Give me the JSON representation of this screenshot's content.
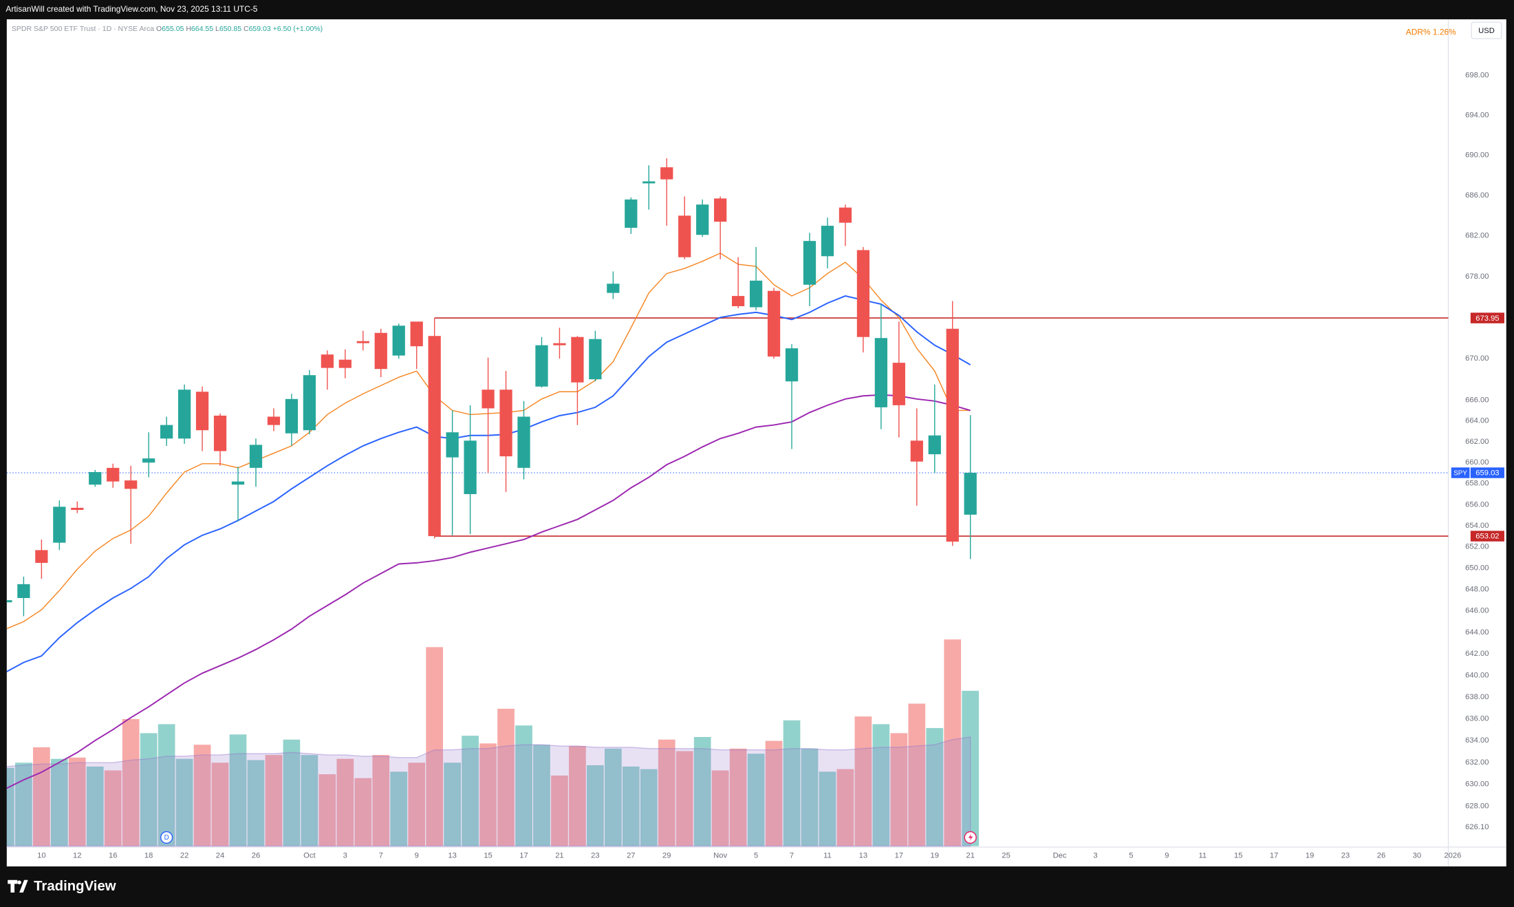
{
  "header": {
    "credit": "ArtisanWill created with TradingView.com, Nov 23, 2025 13:11 UTC-5"
  },
  "footer": {
    "brand": "TradingView"
  },
  "chart_data": {
    "type": "candlestick",
    "symbol_title": "SPDR S&P 500 ETF Trust · 1D · NYSE Arca",
    "legend_letters": [
      "O",
      "H",
      "L",
      "C"
    ],
    "change": "+6.50 (+1.00%)",
    "currency": "USD",
    "indicator": {
      "name": "ADR%",
      "value": 1.26,
      "value_label": "1.26%"
    },
    "symbol": "SPY",
    "dividend_marker": "D",
    "categories": [
      null,
      null,
      "10",
      null,
      "12",
      null,
      "16",
      null,
      "18",
      null,
      "22",
      null,
      "24",
      null,
      "26",
      null,
      null,
      "Oct",
      null,
      "3",
      null,
      "7",
      null,
      "9",
      null,
      "13",
      null,
      "15",
      null,
      "17",
      null,
      "21",
      null,
      "23",
      null,
      "27",
      null,
      "29",
      null,
      null,
      "Nov",
      null,
      "5",
      null,
      "7",
      null,
      "11",
      null,
      "13",
      null,
      "17",
      null,
      "19",
      null,
      "21"
    ],
    "future_categories": [
      null,
      "25",
      null,
      null,
      "Dec",
      null,
      "3",
      null,
      "5",
      null,
      "9",
      null,
      "11",
      null,
      "15",
      null,
      "17",
      null,
      "19",
      null,
      "23",
      null,
      "26",
      null,
      "30",
      null,
      "2026"
    ],
    "open": [
      646.8,
      647.2,
      651.7,
      652.4,
      655.7,
      657.9,
      659.5,
      658.3,
      660.0,
      662.3,
      662.3,
      666.8,
      664.5,
      657.9,
      659.5,
      664.4,
      662.8,
      663.1,
      670.4,
      669.9,
      671.7,
      672.5,
      670.3,
      673.6,
      672.2,
      660.5,
      657.0,
      667.0,
      667.0,
      659.5,
      667.3,
      671.5,
      672.1,
      668.0,
      676.4,
      682.8,
      687.2,
      688.8,
      684.0,
      682.1,
      685.7,
      676.1,
      675.0,
      676.6,
      667.8,
      677.2,
      680.0,
      684.8,
      680.6,
      665.3,
      669.6,
      662.1,
      660.8,
      672.9,
      655.05
    ],
    "high": [
      647.2,
      649.2,
      652.7,
      656.4,
      656.3,
      659.3,
      659.9,
      659.7,
      662.9,
      664.4,
      667.5,
      667.3,
      664.7,
      659.6,
      662.3,
      665.2,
      666.6,
      668.9,
      670.8,
      670.9,
      672.7,
      672.9,
      673.4,
      673.5,
      673.95,
      665.0,
      665.5,
      670.1,
      668.8,
      665.9,
      672.1,
      673.0,
      672.2,
      672.7,
      678.5,
      685.8,
      689.0,
      689.7,
      685.9,
      685.6,
      685.9,
      679.9,
      680.9,
      676.9,
      671.4,
      682.3,
      683.8,
      685.1,
      680.9,
      675.3,
      673.6,
      665.2,
      667.5,
      675.6,
      664.55
    ],
    "low": [
      646.6,
      645.5,
      649.0,
      651.7,
      655.2,
      657.7,
      657.6,
      652.3,
      658.6,
      661.6,
      661.8,
      661.1,
      659.7,
      654.4,
      657.7,
      663.0,
      661.6,
      662.7,
      667.0,
      668.1,
      670.8,
      668.2,
      670.0,
      669.0,
      652.8,
      653.1,
      653.2,
      659.0,
      657.2,
      658.4,
      667.2,
      670.0,
      663.6,
      667.8,
      675.8,
      682.2,
      684.6,
      683.0,
      679.7,
      681.9,
      679.7,
      674.9,
      674.7,
      670.0,
      661.3,
      675.1,
      678.8,
      681.0,
      670.6,
      663.2,
      662.4,
      655.9,
      659.0,
      652.1,
      650.85
    ],
    "close": [
      647.0,
      648.5,
      650.5,
      655.8,
      655.5,
      659.1,
      658.2,
      657.5,
      660.4,
      663.6,
      667.0,
      663.1,
      661.1,
      658.2,
      661.7,
      663.6,
      666.1,
      668.4,
      669.1,
      669.1,
      671.5,
      669.0,
      673.2,
      671.2,
      653.02,
      662.9,
      662.1,
      665.2,
      660.6,
      664.4,
      671.3,
      671.3,
      667.7,
      671.9,
      677.3,
      685.6,
      687.4,
      687.6,
      679.9,
      685.1,
      683.4,
      675.1,
      677.6,
      670.2,
      671.0,
      681.5,
      683.0,
      683.3,
      672.1,
      672.0,
      665.5,
      660.1,
      662.6,
      652.5,
      659.03
    ],
    "up_color": "#26a69a",
    "down_color": "#ef5350",
    "ma_series": [
      {
        "color": "#f5841f",
        "values": [
          644.3,
          645.0,
          646.1,
          647.9,
          649.9,
          651.6,
          652.8,
          653.6,
          654.9,
          657.1,
          659.1,
          659.9,
          659.9,
          659.5,
          660.2,
          660.9,
          661.6,
          662.9,
          664.6,
          665.7,
          666.6,
          667.4,
          668.2,
          668.8,
          666.4,
          665.0,
          664.6,
          664.7,
          664.8,
          665.0,
          666.1,
          666.8,
          666.8,
          667.9,
          669.7,
          673.0,
          676.4,
          678.3,
          678.8,
          679.5,
          680.3,
          679.2,
          679.0,
          677.2,
          676.1,
          676.9,
          678.3,
          679.4,
          677.8,
          675.7,
          674.0,
          671.0,
          668.8,
          665.0,
          665.0
        ]
      },
      {
        "color": "#2962ff",
        "values": [
          640.3,
          641.2,
          641.8,
          643.5,
          644.9,
          646.1,
          647.2,
          648.1,
          649.2,
          650.9,
          652.2,
          653.1,
          653.7,
          654.5,
          655.4,
          656.3,
          657.5,
          658.6,
          659.7,
          660.7,
          661.6,
          662.3,
          662.9,
          663.4,
          662.5,
          662.3,
          662.6,
          662.6,
          662.7,
          663.2,
          663.9,
          664.5,
          664.8,
          665.3,
          666.4,
          668.3,
          670.2,
          671.6,
          672.4,
          673.2,
          674.0,
          674.3,
          674.5,
          674.2,
          673.8,
          674.5,
          675.4,
          676.1,
          675.7,
          675.3,
          674.2,
          672.6,
          671.3,
          670.4,
          669.4
        ]
      },
      {
        "color": "#9c27b0",
        "values": [
          629.6,
          630.4,
          631.1,
          632.0,
          632.9,
          634.0,
          635.0,
          636.1,
          637.1,
          638.2,
          639.3,
          640.2,
          640.9,
          641.6,
          642.4,
          643.3,
          644.3,
          645.5,
          646.5,
          647.5,
          648.6,
          649.5,
          650.4,
          650.5,
          650.7,
          651.0,
          651.5,
          651.9,
          652.3,
          652.7,
          653.4,
          654.0,
          654.6,
          655.5,
          656.4,
          657.6,
          658.6,
          659.8,
          660.6,
          661.5,
          662.3,
          662.8,
          663.4,
          663.6,
          663.9,
          664.8,
          665.5,
          666.1,
          666.4,
          666.5,
          666.4,
          666.1,
          665.9,
          665.5,
          665.0
        ]
      }
    ],
    "volume": {
      "values": [
        61,
        65,
        77,
        68,
        69,
        62,
        59,
        99,
        88,
        95,
        68,
        79,
        65,
        87,
        67,
        71,
        83,
        71,
        56,
        68,
        53,
        71,
        58,
        65,
        155,
        65,
        86,
        80,
        107,
        94,
        79,
        55,
        78,
        63,
        76,
        62,
        60,
        83,
        74,
        85,
        59,
        76,
        72,
        82,
        98,
        76,
        58,
        60,
        101,
        95,
        88,
        111,
        92,
        161,
        121
      ],
      "ma": [
        62,
        63,
        64,
        64,
        65,
        65,
        65,
        67,
        68,
        70,
        70,
        71,
        71,
        72,
        72,
        72,
        73,
        72,
        71,
        71,
        70,
        70,
        69,
        69,
        75,
        75,
        76,
        76,
        78,
        79,
        79,
        78,
        78,
        77,
        77,
        77,
        76,
        76,
        76,
        76,
        75,
        75,
        75,
        75,
        76,
        76,
        75,
        75,
        76,
        77,
        77,
        78,
        79,
        83,
        85
      ],
      "ma_color": "#9575cd"
    },
    "hlines": [
      {
        "value": 673.95,
        "color": "#c62828"
      },
      {
        "value": 653.02,
        "color": "#c62828"
      }
    ],
    "last_price_color": "#2962ff",
    "ylim": [
      624.3,
      703.7
    ],
    "yticks": [
      {
        "value": 698,
        "label": "698.00"
      },
      {
        "value": 694,
        "label": "694.00"
      },
      {
        "value": 690,
        "label": "690.00"
      },
      {
        "value": 686,
        "label": "686.00"
      },
      {
        "value": 682,
        "label": "682.00"
      },
      {
        "value": 678,
        "label": "678.00"
      },
      {
        "value": 670,
        "label": "670.00"
      },
      {
        "value": 666,
        "label": "666.00"
      },
      {
        "value": 664,
        "label": "664.00"
      },
      {
        "value": 662,
        "label": "662.00"
      },
      {
        "value": 660,
        "label": "660.00"
      },
      {
        "value": 658,
        "label": "658.00"
      },
      {
        "value": 656,
        "label": "656.00"
      },
      {
        "value": 654,
        "label": "654.00"
      },
      {
        "value": 652,
        "label": "652.00"
      },
      {
        "value": 650,
        "label": "650.00"
      },
      {
        "value": 648,
        "label": "648.00"
      },
      {
        "value": 646,
        "label": "646.00"
      },
      {
        "value": 644,
        "label": "644.00"
      },
      {
        "value": 642,
        "label": "642.00"
      },
      {
        "value": 640,
        "label": "640.00"
      },
      {
        "value": 638,
        "label": "638.00"
      },
      {
        "value": 636,
        "label": "636.00"
      },
      {
        "value": 634,
        "label": "634.00"
      },
      {
        "value": 632,
        "label": "632.00"
      },
      {
        "value": 630,
        "label": "630.00"
      },
      {
        "value": 628,
        "label": "628.00"
      },
      {
        "value": 626.1,
        "label": "626.10"
      }
    ],
    "log_scale": true,
    "grid": false
  }
}
